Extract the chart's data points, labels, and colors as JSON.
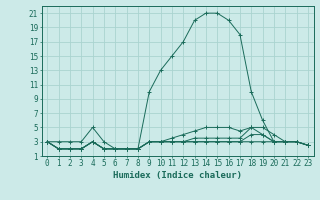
{
  "title": "",
  "xlabel": "Humidex (Indice chaleur)",
  "bg_color": "#cceae8",
  "grid_color": "#aad4d0",
  "line_color": "#1a6b5a",
  "xlim": [
    -0.5,
    23.5
  ],
  "ylim": [
    1,
    22
  ],
  "xticks": [
    0,
    1,
    2,
    3,
    4,
    5,
    6,
    7,
    8,
    9,
    10,
    11,
    12,
    13,
    14,
    15,
    16,
    17,
    18,
    19,
    20,
    21,
    22,
    23
  ],
  "yticks": [
    1,
    3,
    5,
    7,
    9,
    11,
    13,
    15,
    17,
    19,
    21
  ],
  "series": [
    {
      "x": [
        0,
        1,
        2,
        3,
        4,
        5,
        6,
        7,
        8,
        9,
        10,
        11,
        12,
        13,
        14,
        15,
        16,
        17,
        18,
        19,
        20,
        21,
        22,
        23
      ],
      "y": [
        3,
        3,
        3,
        3,
        5,
        3,
        2,
        2,
        2,
        10,
        13,
        15,
        17,
        20,
        21,
        21,
        20,
        18,
        10,
        6,
        3,
        3,
        3,
        2.5
      ]
    },
    {
      "x": [
        0,
        1,
        2,
        3,
        4,
        5,
        6,
        7,
        8,
        9,
        10,
        11,
        12,
        13,
        14,
        15,
        16,
        17,
        18,
        19,
        20,
        21,
        22,
        23
      ],
      "y": [
        3,
        2,
        2,
        2,
        3,
        2,
        2,
        2,
        2,
        3,
        3,
        3,
        3,
        3,
        3,
        3,
        3,
        3,
        4,
        4,
        3,
        3,
        3,
        2.5
      ]
    },
    {
      "x": [
        0,
        1,
        2,
        3,
        4,
        5,
        6,
        7,
        8,
        9,
        10,
        11,
        12,
        13,
        14,
        15,
        16,
        17,
        18,
        19,
        20,
        21,
        22,
        23
      ],
      "y": [
        3,
        2,
        2,
        2,
        3,
        2,
        2,
        2,
        2,
        3,
        3,
        3,
        3,
        3,
        3,
        3,
        3,
        3,
        3,
        3,
        3,
        3,
        3,
        2.5
      ]
    },
    {
      "x": [
        0,
        1,
        2,
        3,
        4,
        5,
        6,
        7,
        8,
        9,
        10,
        11,
        12,
        13,
        14,
        15,
        16,
        17,
        18,
        19,
        20,
        21,
        22,
        23
      ],
      "y": [
        3,
        2,
        2,
        2,
        3,
        2,
        2,
        2,
        2,
        3,
        3,
        3,
        3,
        3.5,
        3.5,
        3.5,
        3.5,
        3.5,
        5,
        4,
        3,
        3,
        3,
        2.5
      ]
    },
    {
      "x": [
        0,
        1,
        2,
        3,
        4,
        5,
        6,
        7,
        8,
        9,
        10,
        11,
        12,
        13,
        14,
        15,
        16,
        17,
        18,
        19,
        20,
        21,
        22,
        23
      ],
      "y": [
        3,
        2,
        2,
        2,
        3,
        2,
        2,
        2,
        2,
        3,
        3,
        3.5,
        4,
        4.5,
        5,
        5,
        5,
        4.5,
        5,
        5,
        4,
        3,
        3,
        2.5
      ]
    }
  ]
}
